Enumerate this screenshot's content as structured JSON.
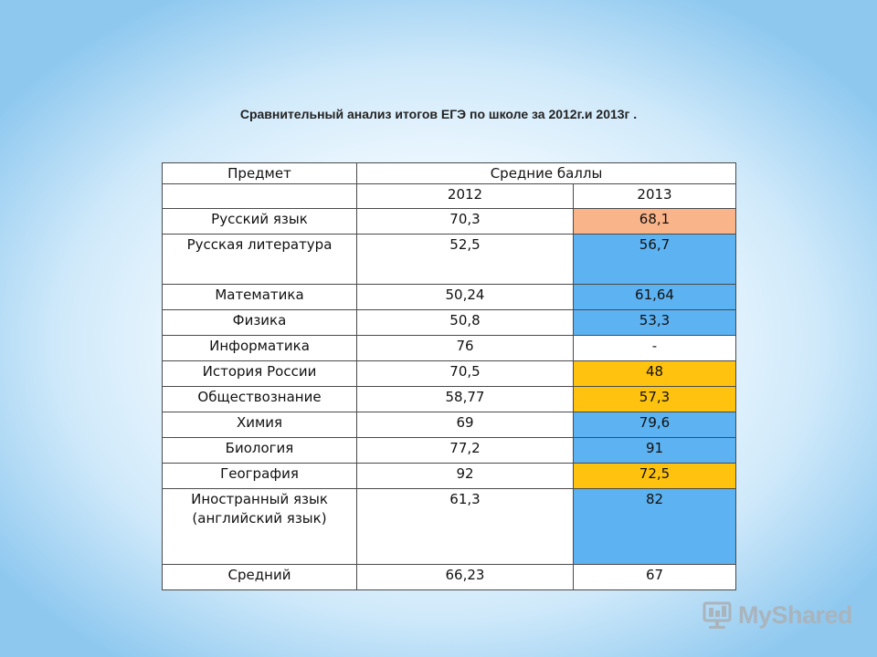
{
  "title": "Сравнительный анализ итогов ЕГЭ по школе за 2012г.и 2013г  .",
  "table": {
    "header_subject": "Предмет",
    "header_scores": "Средние баллы",
    "year_2012": "2012",
    "year_2013": "2013",
    "rows": [
      {
        "subject": "Русский язык",
        "v2012": "70,3",
        "v2013": "68,1",
        "color2013": "#f9b48a"
      },
      {
        "subject": "Русская литература",
        "v2012": "52,5",
        "v2013": "56,7",
        "color2013": "#5db2f2"
      },
      {
        "subject": "Математика",
        "v2012": "50,24",
        "v2013": "61,64",
        "color2013": "#5db2f2"
      },
      {
        "subject": "Физика",
        "v2012": "50,8",
        "v2013": "53,3",
        "color2013": "#5db2f2"
      },
      {
        "subject": "Информатика",
        "v2012": "76",
        "v2013": "-",
        "color2013": "#ffffff"
      },
      {
        "subject": "История России",
        "v2012": "70,5",
        "v2013": "48",
        "color2013": "#ffc20e"
      },
      {
        "subject": "Обществознание",
        "v2012": "58,77",
        "v2013": "57,3",
        "color2013": "#ffc20e"
      },
      {
        "subject": "Химия",
        "v2012": "69",
        "v2013": "79,6",
        "color2013": "#5db2f2"
      },
      {
        "subject": "Биология",
        "v2012": "77,2",
        "v2013": "91",
        "color2013": "#5db2f2"
      },
      {
        "subject": "География",
        "v2012": "92",
        "v2013": "72,5",
        "color2013": "#ffc20e"
      },
      {
        "subject": "Иностранный язык (английский язык)",
        "v2012": "61,3",
        "v2013": "82",
        "color2013": "#5db2f2"
      }
    ],
    "average": {
      "label": "Средний",
      "v2012": "66,23",
      "v2013": "67"
    }
  },
  "colors": {
    "header_green": "#7ed321",
    "decrease_salmon": "#f9b48a",
    "increase_blue": "#5db2f2",
    "decrease_gold": "#ffc20e"
  },
  "watermark": {
    "text": "MyShared",
    "icon": "presentation-board-icon"
  }
}
